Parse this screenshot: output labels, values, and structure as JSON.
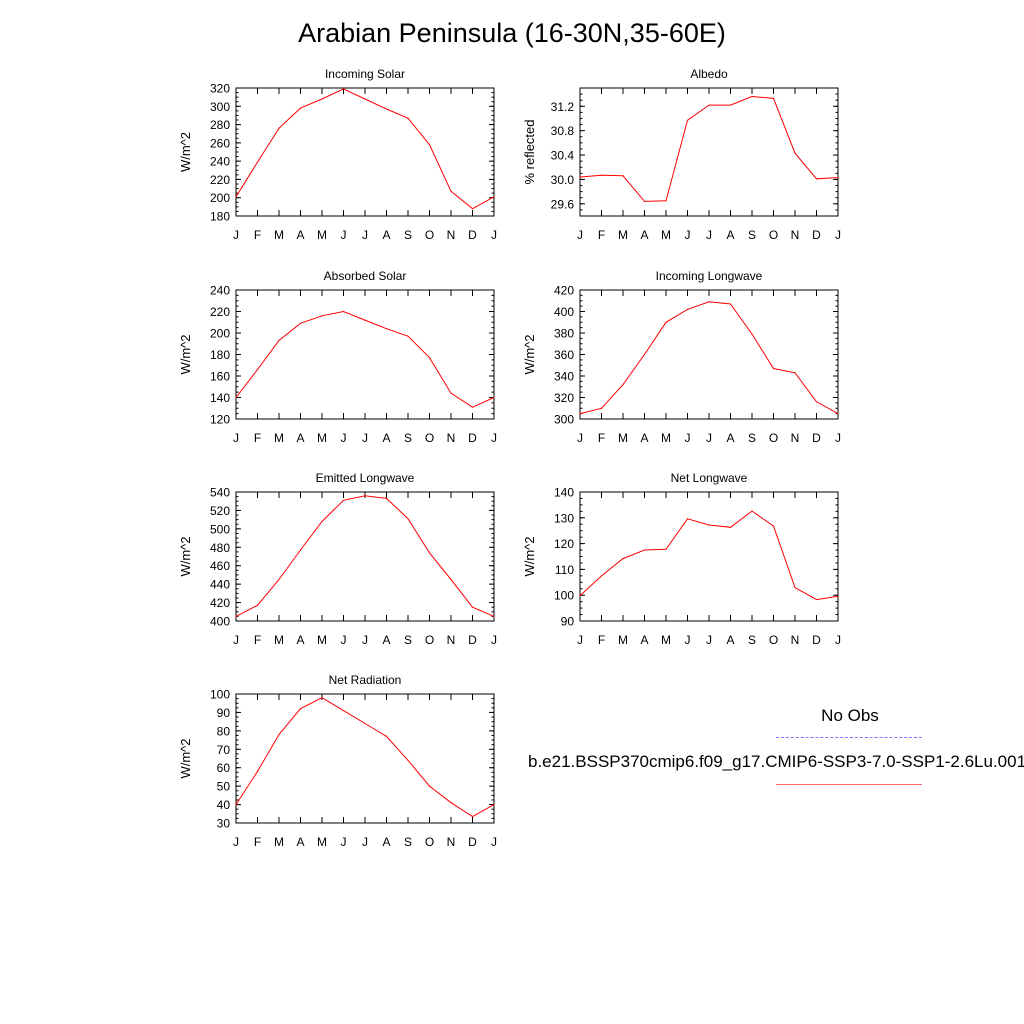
{
  "figure": {
    "title": "Arabian Peninsula (16-30N,35-60E)"
  },
  "legend": {
    "obs_label": "No Obs",
    "obs_color": "#7b7bff",
    "model_label": "b.e21.BSSP370cmip6.f09_g17.CMIP6-SSP3-7.0-SSP1-2.6Lu.001",
    "model_color": "#ff0000"
  },
  "chart_data": [
    {
      "type": "line",
      "title": "Incoming Solar",
      "ylabel": "W/m^2",
      "categories": [
        "J",
        "F",
        "M",
        "A",
        "M",
        "J",
        "J",
        "A",
        "S",
        "O",
        "N",
        "D",
        "J"
      ],
      "ylim": [
        180,
        320
      ],
      "yticks": [
        180,
        200,
        220,
        240,
        260,
        280,
        300,
        320
      ],
      "series": [
        {
          "values": [
            201,
            239,
            276,
            298,
            308,
            319,
            308,
            297,
            287,
            258,
            207,
            188,
            201
          ]
        }
      ]
    },
    {
      "type": "line",
      "title": "Albedo",
      "ylabel": "% reflected",
      "categories": [
        "J",
        "F",
        "M",
        "A",
        "M",
        "J",
        "J",
        "A",
        "S",
        "O",
        "N",
        "D",
        "J"
      ],
      "ylim": [
        29.4,
        31.5
      ],
      "yticks": [
        29.6,
        30.0,
        30.4,
        30.8,
        31.2
      ],
      "yticklabels": [
        "29.6",
        "30.0",
        "30.4",
        "30.8",
        "31.2"
      ],
      "series": [
        {
          "values": [
            30.04,
            30.07,
            30.06,
            29.64,
            29.65,
            30.97,
            31.22,
            31.22,
            31.36,
            31.33,
            30.43,
            30.01,
            30.03
          ]
        }
      ]
    },
    {
      "type": "line",
      "title": "Absorbed Solar",
      "ylabel": "W/m^2",
      "categories": [
        "J",
        "F",
        "M",
        "A",
        "M",
        "J",
        "J",
        "A",
        "S",
        "O",
        "N",
        "D",
        "J"
      ],
      "ylim": [
        120,
        240
      ],
      "yticks": [
        120,
        140,
        160,
        180,
        200,
        220,
        240
      ],
      "series": [
        {
          "values": [
            140,
            166,
            193,
            209,
            216,
            220,
            212,
            204,
            197,
            177,
            144,
            131,
            140
          ]
        }
      ]
    },
    {
      "type": "line",
      "title": "Incoming Longwave",
      "ylabel": "W/m^2",
      "categories": [
        "J",
        "F",
        "M",
        "A",
        "M",
        "J",
        "J",
        "A",
        "S",
        "O",
        "N",
        "D",
        "J"
      ],
      "ylim": [
        300,
        420
      ],
      "yticks": [
        300,
        320,
        340,
        360,
        380,
        400,
        420
      ],
      "series": [
        {
          "values": [
            305,
            310,
            332,
            360,
            390,
            402,
            409,
            407,
            379,
            347,
            343,
            316,
            305
          ]
        }
      ]
    },
    {
      "type": "line",
      "title": "Emitted Longwave",
      "ylabel": "W/m^2",
      "categories": [
        "J",
        "F",
        "M",
        "A",
        "M",
        "J",
        "J",
        "A",
        "S",
        "O",
        "N",
        "D",
        "J"
      ],
      "ylim": [
        400,
        540
      ],
      "yticks": [
        400,
        420,
        440,
        460,
        480,
        500,
        520,
        540
      ],
      "series": [
        {
          "values": [
            405,
            417,
            445,
            477,
            508,
            531,
            536,
            533,
            511,
            474,
            445,
            415,
            405
          ]
        }
      ]
    },
    {
      "type": "line",
      "title": "Net Longwave",
      "ylabel": "W/m^2",
      "categories": [
        "J",
        "F",
        "M",
        "A",
        "M",
        "J",
        "J",
        "A",
        "S",
        "O",
        "N",
        "D",
        "J"
      ],
      "ylim": [
        90,
        140
      ],
      "yticks": [
        90,
        100,
        110,
        120,
        130,
        140
      ],
      "series": [
        {
          "values": [
            99.8,
            107.5,
            114.2,
            117.5,
            117.8,
            129.6,
            127.2,
            126.3,
            132.6,
            126.8,
            103.0,
            98.3,
            99.6
          ]
        }
      ]
    },
    {
      "type": "line",
      "title": "Net Radiation",
      "ylabel": "W/m^2",
      "categories": [
        "J",
        "F",
        "M",
        "A",
        "M",
        "J",
        "J",
        "A",
        "S",
        "O",
        "N",
        "D",
        "J"
      ],
      "ylim": [
        30,
        100
      ],
      "yticks": [
        30,
        40,
        50,
        60,
        70,
        80,
        90,
        100
      ],
      "series": [
        {
          "values": [
            40,
            58,
            78,
            92,
            98,
            91,
            84,
            77,
            64,
            50,
            41,
            33.5,
            40
          ]
        }
      ]
    }
  ]
}
